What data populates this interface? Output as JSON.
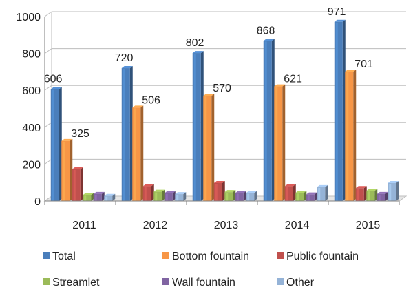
{
  "chart_data": {
    "type": "bar",
    "title": "",
    "xlabel": "",
    "ylabel": "",
    "categories": [
      "2011",
      "2012",
      "2013",
      "2014",
      "2015"
    ],
    "ylim": [
      0,
      1000
    ],
    "yticks": [
      0,
      200,
      400,
      600,
      800,
      1000
    ],
    "grid": true,
    "legend_position": "bottom",
    "series": [
      {
        "name": "Total",
        "color": "#4a7ebb",
        "values": [
          606,
          720,
          802,
          868,
          971
        ],
        "labels": [
          "606",
          "720",
          "802",
          "868",
          "971"
        ]
      },
      {
        "name": "Bottom fountain",
        "color": "#f79646",
        "values": [
          325,
          506,
          570,
          621,
          701
        ],
        "labels": [
          "325",
          "506",
          "570",
          "621",
          "701"
        ]
      },
      {
        "name": "Public fountain",
        "color": "#c0504d",
        "values": [
          172,
          80,
          97,
          80,
          70
        ]
      },
      {
        "name": "Streamlet",
        "color": "#9bbb59",
        "values": [
          32,
          50,
          48,
          44,
          55
        ]
      },
      {
        "name": "Wall fountain",
        "color": "#8064a2",
        "values": [
          38,
          42,
          43,
          35,
          38
        ]
      },
      {
        "name": "Other",
        "color": "#95b3d7",
        "values": [
          27,
          37,
          43,
          75,
          97
        ]
      }
    ]
  }
}
